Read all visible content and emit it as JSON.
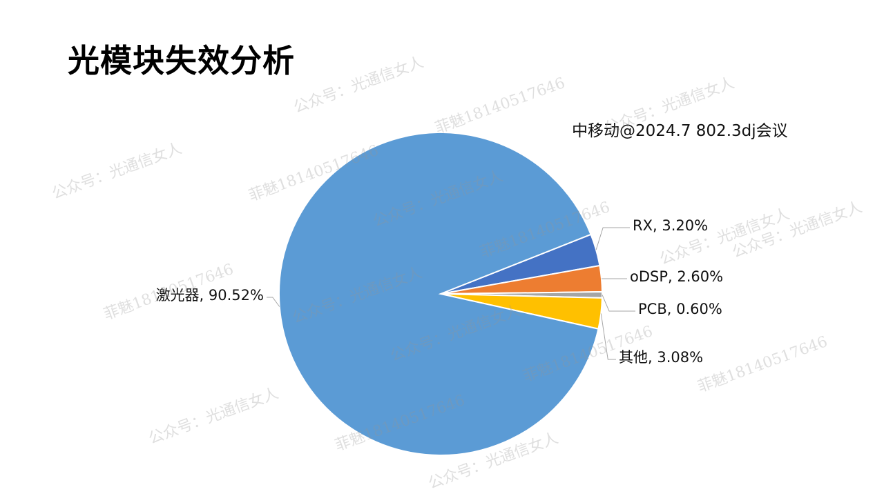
{
  "page": {
    "title": "光模块失效分析",
    "source_note": "中移动@2024.7 802.3dj会议"
  },
  "chart_data": {
    "type": "pie",
    "title": "",
    "slices": [
      {
        "label": "RX",
        "value": 3.2,
        "display": "RX, 3.20%",
        "color": "#4472C4"
      },
      {
        "label": "oDSP",
        "value": 2.6,
        "display": "oDSP, 2.60%",
        "color": "#ED7D31"
      },
      {
        "label": "PCB",
        "value": 0.6,
        "display": "PCB, 0.60%",
        "color": "#A5A5A5"
      },
      {
        "label": "其他",
        "value": 3.08,
        "display": "其他, 3.08%",
        "color": "#FFC000"
      },
      {
        "label": "激光器",
        "value": 90.52,
        "display": "激光器, 90.52%",
        "color": "#5B9BD5"
      }
    ],
    "legend": "none",
    "data_labels": "outside with leader lines"
  },
  "watermarks": [
    "公众号：光通信女人",
    "菲魅18140517646",
    "公众号：光通信女人",
    "菲魅18140517646",
    "公众号：光通信女人",
    "公众号：光通信女人",
    "菲魅18140517646",
    "公众号：光通信女人",
    "菲魅18140517646",
    "公众号：光通信女人",
    "菲魅18140517646",
    "公众号：光通信女人",
    "菲魅18140517646",
    "公众号：光通信女人",
    "菲魅18140517646",
    "公众号：光通信女人",
    "公众号：光通信女人"
  ]
}
